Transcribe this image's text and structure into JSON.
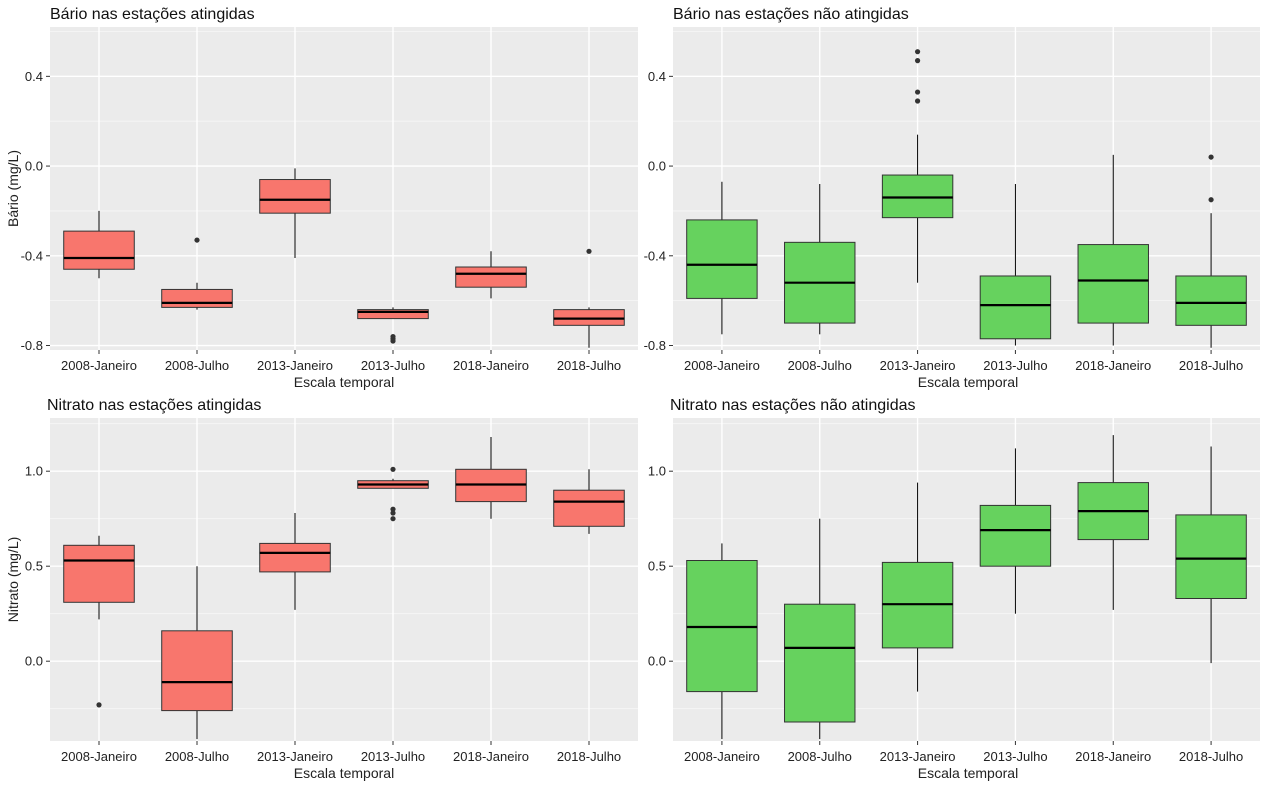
{
  "chart_data": [
    {
      "type": "boxplot",
      "title": "Bário nas estações atingidas",
      "xlabel": "Escala temporal",
      "ylabel": "Bário (mg/L)",
      "ylim": [
        -0.82,
        0.62
      ],
      "yticks": [
        0.4,
        0.0,
        -0.4,
        -0.8
      ],
      "ytick_labels": [
        "0.4",
        "0.0",
        "-0.4",
        "-0.8"
      ],
      "categories": [
        "2008-Janeiro",
        "2008-Julho",
        "2013-Janeiro",
        "2013-Julho",
        "2018-Janeiro",
        "2018-Julho"
      ],
      "fill": "#F8766D",
      "boxes": [
        {
          "whisker_low": -0.5,
          "q1": -0.46,
          "median": -0.41,
          "q3": -0.29,
          "whisker_high": -0.2,
          "outliers": []
        },
        {
          "whisker_low": -0.64,
          "q1": -0.63,
          "median": -0.61,
          "q3": -0.55,
          "whisker_high": -0.52,
          "outliers": [
            -0.33
          ]
        },
        {
          "whisker_low": -0.41,
          "q1": -0.21,
          "median": -0.15,
          "q3": -0.06,
          "whisker_high": -0.01,
          "outliers": []
        },
        {
          "whisker_low": -0.68,
          "q1": -0.68,
          "median": -0.65,
          "q3": -0.64,
          "whisker_high": -0.63,
          "outliers": [
            -0.76,
            -0.77,
            -0.78
          ]
        },
        {
          "whisker_low": -0.59,
          "q1": -0.54,
          "median": -0.48,
          "q3": -0.45,
          "whisker_high": -0.38,
          "outliers": []
        },
        {
          "whisker_low": -0.81,
          "q1": -0.71,
          "median": -0.68,
          "q3": -0.64,
          "whisker_high": -0.63,
          "outliers": [
            -0.38
          ]
        }
      ]
    },
    {
      "type": "boxplot",
      "title": "Bário nas estações não atingidas",
      "xlabel": "Escala temporal",
      "ylabel": "",
      "ylim": [
        -0.82,
        0.62
      ],
      "yticks": [
        0.4,
        0.0,
        -0.4,
        -0.8
      ],
      "ytick_labels": [
        "0.4",
        "0.0",
        "-0.4",
        "-0.8"
      ],
      "categories": [
        "2008-Janeiro",
        "2008-Julho",
        "2013-Janeiro",
        "2013-Julho",
        "2018-Janeiro",
        "2018-Julho"
      ],
      "fill": "#66D25E",
      "boxes": [
        {
          "whisker_low": -0.75,
          "q1": -0.59,
          "median": -0.44,
          "q3": -0.24,
          "whisker_high": -0.07,
          "outliers": []
        },
        {
          "whisker_low": -0.75,
          "q1": -0.7,
          "median": -0.52,
          "q3": -0.34,
          "whisker_high": -0.08,
          "outliers": []
        },
        {
          "whisker_low": -0.52,
          "q1": -0.23,
          "median": -0.14,
          "q3": -0.04,
          "whisker_high": 0.14,
          "outliers": [
            0.29,
            0.33,
            0.47,
            0.51
          ]
        },
        {
          "whisker_low": -0.8,
          "q1": -0.77,
          "median": -0.62,
          "q3": -0.49,
          "whisker_high": -0.08,
          "outliers": []
        },
        {
          "whisker_low": -0.8,
          "q1": -0.7,
          "median": -0.51,
          "q3": -0.35,
          "whisker_high": 0.05,
          "outliers": []
        },
        {
          "whisker_low": -0.81,
          "q1": -0.71,
          "median": -0.61,
          "q3": -0.49,
          "whisker_high": -0.21,
          "outliers": [
            -0.15,
            0.04
          ]
        }
      ]
    },
    {
      "type": "boxplot",
      "title": "Nitrato nas estações atingidas",
      "xlabel": "Escala temporal",
      "ylabel": "Nitrato (mg/L)",
      "ylim": [
        -0.42,
        1.28
      ],
      "yticks": [
        1.0,
        0.5,
        0.0
      ],
      "ytick_labels": [
        "1.0",
        "0.5",
        "0.0"
      ],
      "categories": [
        "2008-Janeiro",
        "2008-Julho",
        "2013-Janeiro",
        "2013-Julho",
        "2018-Janeiro",
        "2018-Julho"
      ],
      "fill": "#F8766D",
      "boxes": [
        {
          "whisker_low": 0.22,
          "q1": 0.31,
          "median": 0.53,
          "q3": 0.61,
          "whisker_high": 0.66,
          "outliers": [
            -0.23
          ]
        },
        {
          "whisker_low": -0.41,
          "q1": -0.26,
          "median": -0.11,
          "q3": 0.16,
          "whisker_high": 0.5,
          "outliers": []
        },
        {
          "whisker_low": 0.27,
          "q1": 0.47,
          "median": 0.57,
          "q3": 0.62,
          "whisker_high": 0.78,
          "outliers": []
        },
        {
          "whisker_low": 0.91,
          "q1": 0.91,
          "median": 0.93,
          "q3": 0.95,
          "whisker_high": 0.96,
          "outliers": [
            0.75,
            0.78,
            0.8,
            1.01
          ]
        },
        {
          "whisker_low": 0.75,
          "q1": 0.84,
          "median": 0.93,
          "q3": 1.01,
          "whisker_high": 1.18,
          "outliers": []
        },
        {
          "whisker_low": 0.67,
          "q1": 0.71,
          "median": 0.84,
          "q3": 0.9,
          "whisker_high": 1.01,
          "outliers": []
        }
      ]
    },
    {
      "type": "boxplot",
      "title": "Nitrato nas estações não atingidas",
      "xlabel": "Escala temporal",
      "ylabel": "",
      "ylim": [
        -0.42,
        1.28
      ],
      "yticks": [
        1.0,
        0.5,
        0.0
      ],
      "ytick_labels": [
        "1.0",
        "0.5",
        "0.0"
      ],
      "categories": [
        "2008-Janeiro",
        "2008-Julho",
        "2013-Janeiro",
        "2013-Julho",
        "2018-Janeiro",
        "2018-Julho"
      ],
      "fill": "#66D25E",
      "boxes": [
        {
          "whisker_low": -0.41,
          "q1": -0.16,
          "median": 0.18,
          "q3": 0.53,
          "whisker_high": 0.62,
          "outliers": []
        },
        {
          "whisker_low": -0.41,
          "q1": -0.32,
          "median": 0.07,
          "q3": 0.3,
          "whisker_high": 0.75,
          "outliers": []
        },
        {
          "whisker_low": -0.16,
          "q1": 0.07,
          "median": 0.3,
          "q3": 0.52,
          "whisker_high": 0.94,
          "outliers": []
        },
        {
          "whisker_low": 0.25,
          "q1": 0.5,
          "median": 0.69,
          "q3": 0.82,
          "whisker_high": 1.12,
          "outliers": []
        },
        {
          "whisker_low": 0.27,
          "q1": 0.64,
          "median": 0.79,
          "q3": 0.94,
          "whisker_high": 1.19,
          "outliers": []
        },
        {
          "whisker_low": -0.01,
          "q1": 0.33,
          "median": 0.54,
          "q3": 0.77,
          "whisker_high": 1.13,
          "outliers": []
        }
      ]
    }
  ]
}
